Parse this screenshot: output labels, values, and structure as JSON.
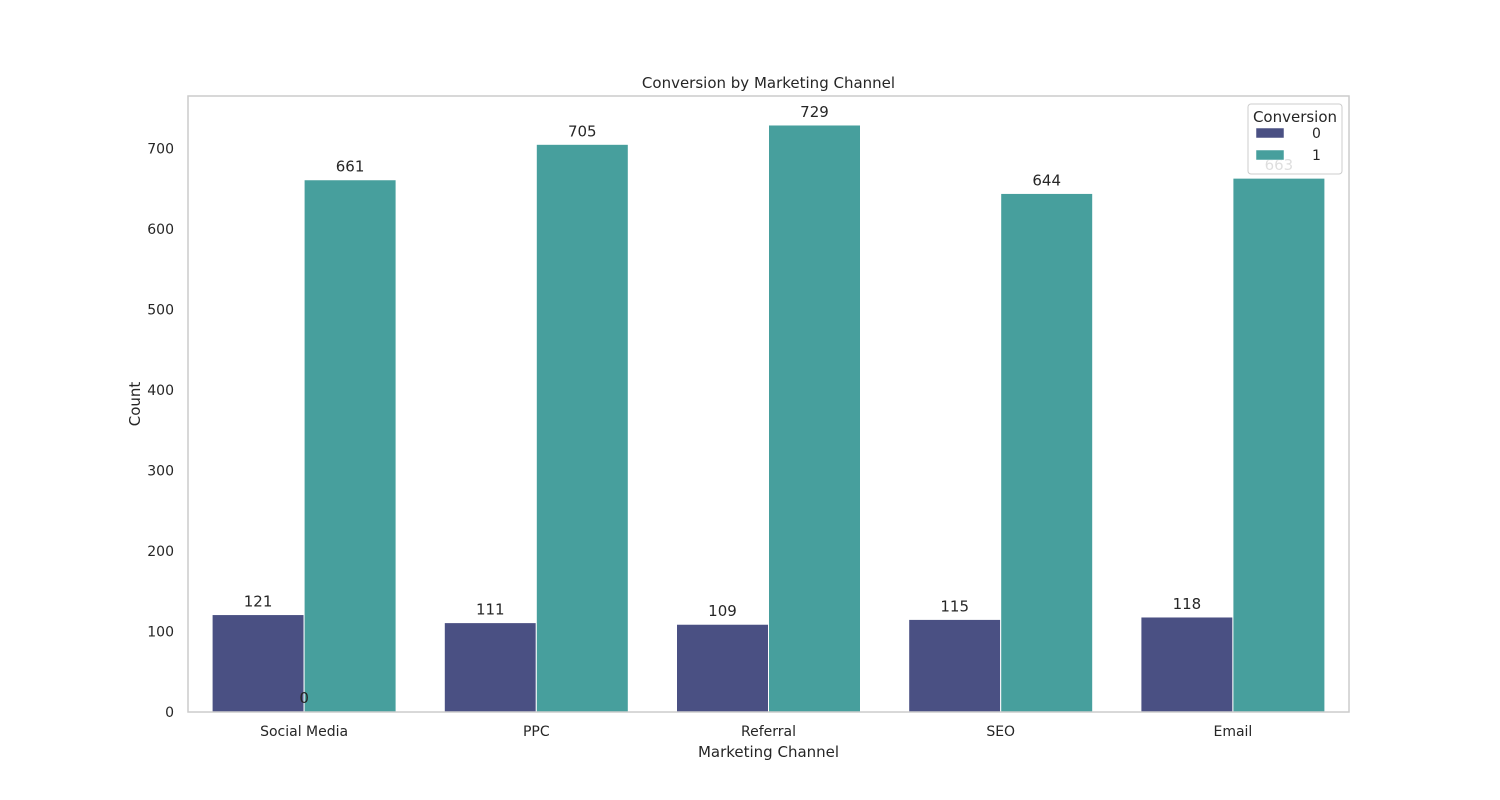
{
  "chart_data": {
    "type": "bar",
    "title": "Conversion by Marketing Channel",
    "xlabel": "Marketing Channel",
    "ylabel": "Count",
    "categories": [
      "Social Media",
      "PPC",
      "Referral",
      "SEO",
      "Email"
    ],
    "series": [
      {
        "name": "0",
        "values": [
          121,
          111,
          109,
          115,
          118
        ],
        "labels": [
          "121",
          "111",
          "109",
          "115",
          "118"
        ],
        "color": "#4a5083"
      },
      {
        "name": "1",
        "values": [
          661,
          705,
          729,
          644,
          663
        ],
        "labels": [
          "661",
          "705",
          "729",
          "644",
          "663"
        ],
        "color": "#479f9d"
      }
    ],
    "extra_annotation": "0",
    "ylim": [
      0,
      765
    ],
    "yticks": [
      0,
      100,
      200,
      300,
      400,
      500,
      600,
      700
    ],
    "grid": false,
    "legend": {
      "title": "Conversion",
      "placement": "top-right"
    }
  }
}
